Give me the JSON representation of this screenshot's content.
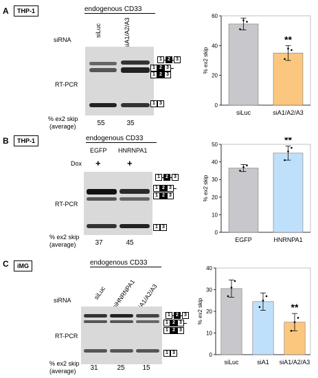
{
  "panels": [
    {
      "letter": "A",
      "cell": "THP-1",
      "header": "endogenous CD33",
      "row_label": "siRNA",
      "lanes": [
        "siLuc",
        "siA1/A2/A3"
      ],
      "method": "RT-PCR",
      "skip_label": [
        "% ex2 skip",
        "(average)"
      ],
      "skip_values": [
        "55",
        "35"
      ],
      "exon_labels": [
        "1",
        "2",
        "3"
      ]
    },
    {
      "letter": "B",
      "cell": "THP-1",
      "header": "endogenous CD33",
      "row_label": "Dox",
      "lanes": [
        "EGFP",
        "HNRNPA1"
      ],
      "lane_marks": [
        "+",
        "+"
      ],
      "method": "RT-PCR",
      "skip_label": [
        "% ex2 skip",
        "(average)"
      ],
      "skip_values": [
        "37",
        "45"
      ],
      "exon_labels": [
        "1",
        "2",
        "3"
      ]
    },
    {
      "letter": "C",
      "cell": "iMG",
      "header": "endogenous CD33",
      "row_label": "siRNA",
      "lanes": [
        "siLuc",
        "siHNRNPA1",
        "siA1/A2/A3"
      ],
      "method": "RT-PCR",
      "skip_label": [
        "% ex2 skip",
        "(average)"
      ],
      "skip_values": [
        "31",
        "25",
        "15"
      ],
      "exon_labels": [
        "1",
        "2",
        "3"
      ]
    }
  ],
  "chart_data": [
    {
      "type": "bar",
      "categories": [
        "siLuc",
        "siA1/A2/A3"
      ],
      "values": [
        54.5,
        35
      ],
      "errors": [
        4,
        5
      ],
      "points": [
        [
          51,
          57,
          56
        ],
        [
          31,
          38,
          37
        ]
      ],
      "colors": [
        "#c8c8cc",
        "#fbc77e"
      ],
      "significance": [
        "",
        "**"
      ],
      "ylabel": "% ex2 skip",
      "ylim": [
        0,
        60
      ],
      "yticks": [
        0,
        20,
        40,
        60
      ]
    },
    {
      "type": "bar",
      "categories": [
        "EGFP",
        "HNRNPA1"
      ],
      "values": [
        36.5,
        45
      ],
      "errors": [
        2,
        4
      ],
      "points": [
        [
          35,
          37,
          38
        ],
        [
          41,
          46,
          48
        ]
      ],
      "colors": [
        "#c8c8cc",
        "#bfe0fb"
      ],
      "significance": [
        "",
        "**"
      ],
      "ylabel": "% ex2 skip",
      "ylim": [
        0,
        50
      ],
      "yticks": [
        0,
        10,
        20,
        30,
        40,
        50
      ]
    },
    {
      "type": "bar",
      "categories": [
        "siLuc",
        "siA1",
        "siA1/A2/A3"
      ],
      "values": [
        30.5,
        24.5,
        15
      ],
      "errors": [
        4,
        4,
        4
      ],
      "points": [
        [
          27,
          31,
          34
        ],
        [
          22,
          25,
          27
        ],
        [
          11,
          15,
          17
        ]
      ],
      "colors": [
        "#c8c8cc",
        "#bfe0fb",
        "#fbc77e"
      ],
      "significance": [
        "",
        "",
        "**"
      ],
      "ylabel": "% ex2 skip",
      "ylim": [
        0,
        40
      ],
      "yticks": [
        0,
        10,
        20,
        30,
        40
      ]
    }
  ]
}
